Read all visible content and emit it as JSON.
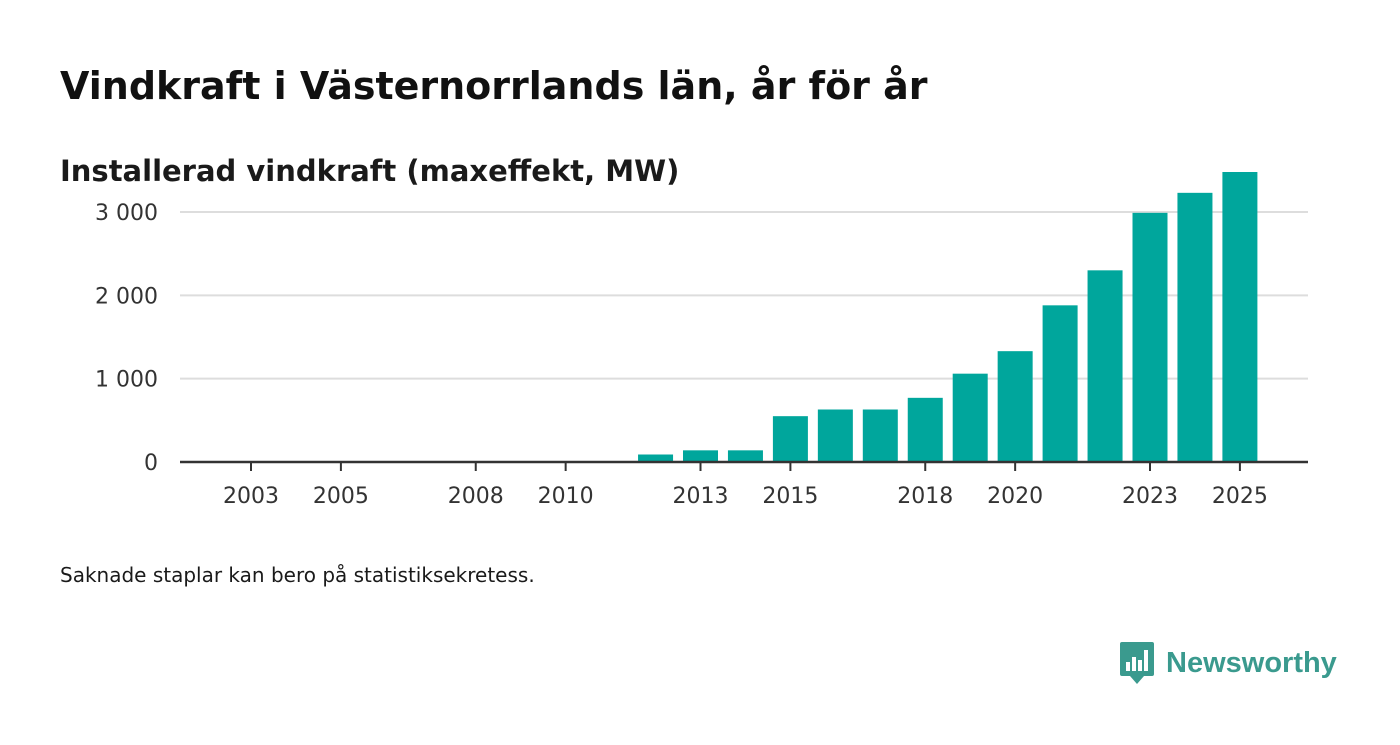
{
  "header": {
    "title": "Vindkraft i Västernorrlands län, år för år",
    "subtitle": "Installerad vindkraft (maxeffekt, MW)"
  },
  "footer": {
    "note": "Saknade staplar kan bero på statistiksekretess.",
    "brand": "Newsworthy"
  },
  "colors": {
    "bar": "#00a69c",
    "grid": "#dddddd",
    "axis": "#333333",
    "tick_text": "#333333",
    "brand": "#3a9a8e"
  },
  "chart_data": {
    "type": "bar",
    "title": "Vindkraft i Västernorrlands län, år för år",
    "subtitle": "Installerad vindkraft (maxeffekt, MW)",
    "xlabel": "",
    "ylabel": "",
    "categories": [
      "2003",
      "2004",
      "2005",
      "2006",
      "2007",
      "2008",
      "2009",
      "2010",
      "2011",
      "2012",
      "2013",
      "2014",
      "2015",
      "2016",
      "2017",
      "2018",
      "2019",
      "2020",
      "2021",
      "2022",
      "2023",
      "2024",
      "2025"
    ],
    "values": [
      0,
      0,
      0,
      0,
      0,
      0,
      0,
      0,
      0,
      90,
      140,
      140,
      550,
      630,
      630,
      770,
      1060,
      1330,
      1880,
      2300,
      2990,
      3230,
      3480
    ],
    "x_tick_labels": [
      "2003",
      "2005",
      "2008",
      "2010",
      "2013",
      "2015",
      "2018",
      "2020",
      "2023",
      "2025"
    ],
    "y_ticks": [
      0,
      1000,
      2000,
      3000
    ],
    "y_tick_labels": [
      "0",
      "1 000",
      "2 000",
      "3 000"
    ],
    "ylim": [
      0,
      3600
    ],
    "grid": true,
    "legend": "none"
  }
}
